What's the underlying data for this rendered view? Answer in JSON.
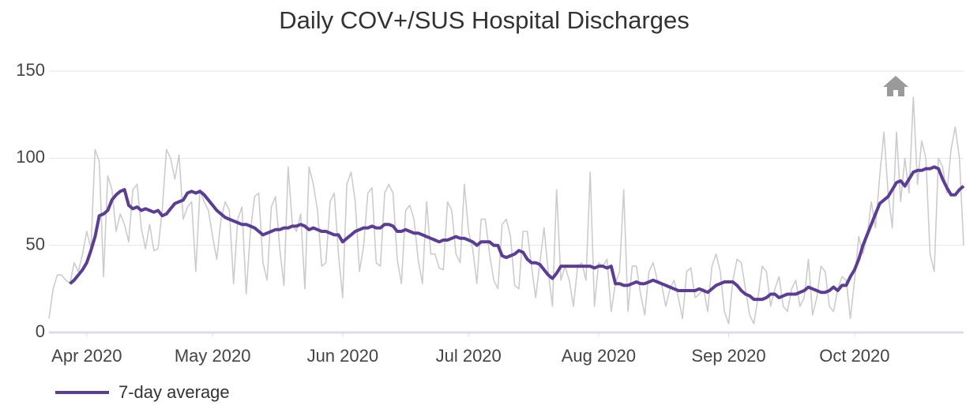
{
  "chart_data": {
    "type": "line",
    "title": "Daily COV+/SUS Hospital Discharges",
    "categories": [
      null,
      null,
      null,
      null,
      null,
      null,
      null,
      null,
      null,
      "Apr 2020",
      null,
      null,
      null,
      null,
      null,
      null,
      null,
      null,
      null,
      null,
      null,
      null,
      null,
      null,
      null,
      null,
      null,
      null,
      null,
      null,
      null,
      null,
      null,
      null,
      null,
      null,
      null,
      null,
      null,
      "May 2020",
      null,
      null,
      null,
      null,
      null,
      null,
      null,
      null,
      null,
      null,
      null,
      null,
      null,
      null,
      null,
      null,
      null,
      null,
      null,
      null,
      null,
      null,
      null,
      null,
      null,
      null,
      null,
      null,
      null,
      null,
      "Jun 2020",
      null,
      null,
      null,
      null,
      null,
      null,
      null,
      null,
      null,
      null,
      null,
      null,
      null,
      null,
      null,
      null,
      null,
      null,
      null,
      null,
      null,
      null,
      null,
      null,
      null,
      null,
      null,
      null,
      null,
      "Jul 2020",
      null,
      null,
      null,
      null,
      null,
      null,
      null,
      null,
      null,
      null,
      null,
      null,
      null,
      null,
      null,
      null,
      null,
      null,
      null,
      null,
      null,
      null,
      null,
      null,
      null,
      null,
      null,
      null,
      null,
      null,
      "Aug 2020",
      null,
      null,
      null,
      null,
      null,
      null,
      null,
      null,
      null,
      null,
      null,
      null,
      null,
      null,
      null,
      null,
      null,
      null,
      null,
      null,
      null,
      null,
      null,
      null,
      null,
      null,
      null,
      null,
      null,
      null,
      "Sep 2020",
      null,
      null,
      null,
      null,
      null,
      null,
      null,
      null,
      null,
      null,
      null,
      null,
      null,
      null,
      null,
      null,
      null,
      null,
      null,
      null,
      null,
      null,
      null,
      null,
      null,
      null,
      null,
      null,
      null,
      "Oct 2020",
      null,
      null,
      null,
      null,
      null,
      null,
      null,
      null,
      null,
      null,
      null,
      null,
      null,
      null,
      null,
      null,
      null,
      null,
      null,
      null,
      null,
      null,
      null,
      null,
      null,
      null
    ],
    "series": [
      {
        "color": "#cccccc",
        "values": [
          8,
          25,
          33,
          33,
          30,
          28,
          40,
          35,
          45,
          58,
          48,
          105,
          98,
          32,
          90,
          82,
          58,
          68,
          62,
          52,
          82,
          85,
          60,
          48,
          62,
          47,
          48,
          70,
          105,
          100,
          88,
          102,
          65,
          72,
          75,
          35,
          82,
          75,
          70,
          55,
          42,
          65,
          75,
          70,
          28,
          65,
          72,
          22,
          58,
          78,
          80,
          40,
          30,
          72,
          78,
          48,
          27,
          95,
          62,
          58,
          68,
          25,
          95,
          85,
          70,
          38,
          40,
          75,
          80,
          45,
          20,
          85,
          92,
          75,
          35,
          50,
          80,
          83,
          40,
          38,
          80,
          85,
          80,
          42,
          28,
          70,
          73,
          65,
          42,
          28,
          75,
          45,
          45,
          37,
          36,
          75,
          70,
          45,
          40,
          85,
          58,
          48,
          28,
          65,
          65,
          45,
          30,
          25,
          62,
          65,
          55,
          27,
          25,
          58,
          58,
          38,
          20,
          40,
          60,
          35,
          15,
          82,
          30,
          38,
          30,
          15,
          38,
          40,
          30,
          92,
          15,
          40,
          38,
          42,
          12,
          28,
          35,
          82,
          12,
          38,
          38,
          22,
          10,
          35,
          40,
          30,
          28,
          15,
          25,
          30,
          20,
          8,
          35,
          37,
          20,
          22,
          25,
          12,
          38,
          45,
          35,
          12,
          5,
          30,
          42,
          40,
          25,
          10,
          5,
          20,
          38,
          35,
          15,
          25,
          32,
          15,
          12,
          25,
          30,
          15,
          20,
          42,
          10,
          20,
          38,
          35,
          15,
          12,
          25,
          32,
          30,
          8,
          30,
          55,
          45,
          55,
          75,
          60,
          90,
          115,
          80,
          60,
          115,
          75,
          100,
          80,
          135,
          85,
          110,
          100,
          45,
          35,
          100,
          95,
          80,
          105,
          118,
          100,
          50
        ]
      },
      {
        "name": "7-day average",
        "color": "#5b3d96",
        "values": [
          null,
          null,
          null,
          null,
          null,
          28,
          30,
          33,
          36,
          40,
          47,
          55,
          67,
          68,
          70,
          76,
          79,
          81,
          82,
          73,
          71,
          72,
          70,
          71,
          70,
          69,
          70,
          67,
          68,
          71,
          74,
          75,
          76,
          80,
          81,
          80,
          81,
          79,
          76,
          73,
          70,
          68,
          66,
          65,
          64,
          63,
          62,
          62,
          61,
          60,
          58,
          56,
          57,
          58,
          59,
          59,
          60,
          60,
          61,
          61,
          62,
          61,
          59,
          60,
          59,
          58,
          58,
          57,
          56,
          56,
          52,
          54,
          56,
          58,
          59,
          60,
          60,
          61,
          60,
          60,
          62,
          62,
          61,
          58,
          58,
          59,
          58,
          57,
          57,
          56,
          55,
          54,
          53,
          52,
          53,
          53,
          54,
          55,
          54,
          54,
          53,
          52,
          50,
          52,
          52,
          52,
          50,
          50,
          44,
          43,
          44,
          45,
          47,
          46,
          42,
          40,
          40,
          39,
          36,
          33,
          31,
          34,
          38,
          38,
          38,
          38,
          38,
          38,
          38,
          38,
          37,
          38,
          38,
          37,
          38,
          28,
          28,
          27,
          27,
          28,
          29,
          28,
          28,
          29,
          30,
          29,
          28,
          27,
          26,
          25,
          24,
          24,
          24,
          24,
          24,
          25,
          24,
          23,
          25,
          27,
          28,
          29,
          29,
          29,
          27,
          24,
          22,
          21,
          19,
          19,
          19,
          20,
          22,
          22,
          20,
          21,
          22,
          22,
          22,
          23,
          24,
          26,
          25,
          24,
          23,
          23,
          24,
          26,
          24,
          27,
          27,
          32,
          36,
          42,
          50,
          56,
          62,
          68,
          74,
          76,
          78,
          82,
          86,
          87,
          84,
          88,
          92,
          93,
          93,
          94,
          94,
          95,
          94,
          88,
          83,
          79,
          79,
          82,
          84
        ]
      }
    ],
    "ylim": [
      0,
      150
    ],
    "yticks": [
      0,
      50,
      100,
      150
    ],
    "grid": true
  }
}
